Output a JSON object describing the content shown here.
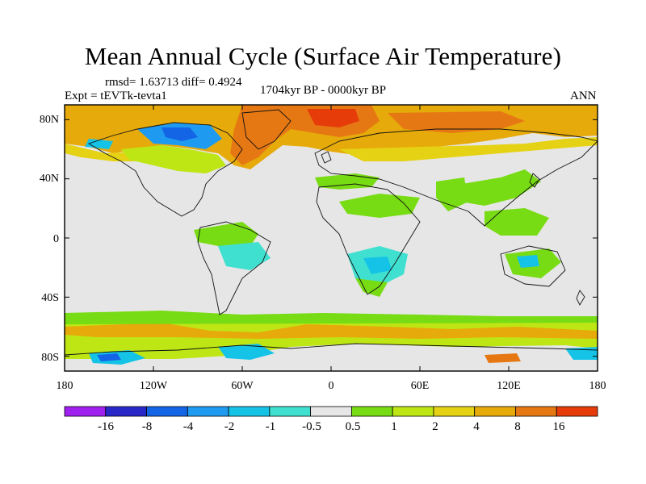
{
  "title": "Mean Annual Cycle (Surface Air Temperature)",
  "stats_line": "rmsd= 1.63713 diff= 0.4924",
  "experiment": "Expt = tEVTk-tevta1",
  "period": "1704kyr BP - 0000kyr BP",
  "season": "ANN",
  "lat_ticks": [
    "80N",
    "40N",
    "0",
    "40S",
    "80S"
  ],
  "lon_ticks": [
    "180",
    "120W",
    "60W",
    "0",
    "60E",
    "120E",
    "180"
  ],
  "colorbar": {
    "labels": [
      "-16",
      "-8",
      "-4",
      "-2",
      "-1",
      "-0.5",
      "0.5",
      "1",
      "2",
      "4",
      "8",
      "16"
    ],
    "colors": [
      "#a020f0",
      "#2828c8",
      "#1464e6",
      "#1e9bf0",
      "#14c3e6",
      "#40e0d0",
      "#e6e6e6",
      "#78dc14",
      "#bee614",
      "#e6d214",
      "#e6aa0a",
      "#e67814",
      "#e63c0a"
    ]
  },
  "chart_data": {
    "type": "heatmap",
    "title": "Mean Annual Cycle (Surface Air Temperature)",
    "variable": "Surface Air Temperature",
    "xlim": [
      -180,
      180
    ],
    "ylim": [
      -90,
      90
    ],
    "colorbar_levels": [
      -16,
      -8,
      -4,
      -2,
      -1,
      -0.5,
      0.5,
      1,
      2,
      4,
      8,
      16
    ],
    "rmsd": 1.63713,
    "diff": 0.4924
  }
}
